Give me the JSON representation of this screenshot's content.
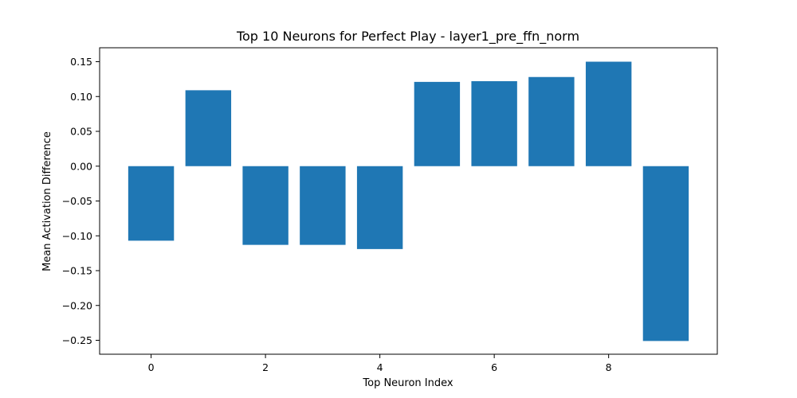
{
  "chart_data": {
    "type": "bar",
    "title": "Top 10 Neurons for Perfect Play - layer1_pre_ffn_norm",
    "xlabel": "Top Neuron Index",
    "ylabel": "Mean Activation Difference",
    "categories": [
      0,
      1,
      2,
      3,
      4,
      5,
      6,
      7,
      8,
      9
    ],
    "values": [
      -0.107,
      0.109,
      -0.113,
      -0.113,
      -0.119,
      0.121,
      0.122,
      0.128,
      0.15,
      -0.251
    ],
    "xlim": [
      -0.9,
      9.9
    ],
    "ylim": [
      -0.27,
      0.17
    ],
    "xticks": [
      0,
      2,
      4,
      6,
      8
    ],
    "xtick_labels": [
      "0",
      "2",
      "4",
      "6",
      "8"
    ],
    "yticks": [
      0.15,
      0.1,
      0.05,
      0.0,
      -0.05,
      -0.1,
      -0.15,
      -0.2,
      -0.25
    ],
    "ytick_labels": [
      "0.15",
      "0.10",
      "0.05",
      "0.00",
      "−0.05",
      "−0.10",
      "−0.15",
      "−0.20",
      "−0.25"
    ],
    "bar_color": "#1f77b4",
    "grid": false,
    "legend": "none"
  }
}
